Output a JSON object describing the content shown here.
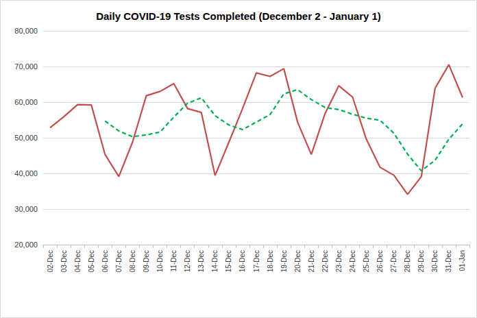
{
  "chart_data": {
    "type": "line",
    "title": "Daily COVID-19 Tests Completed (December 2 - January 1)",
    "categories": [
      "02-Dec",
      "03-Dec",
      "04-Dec",
      "05-Dec",
      "06-Dec",
      "07-Dec",
      "08-Dec",
      "09-Dec",
      "10-Dec",
      "11-Dec",
      "12-Dec",
      "13-Dec",
      "14-Dec",
      "15-Dec",
      "16-Dec",
      "17-Dec",
      "18-Dec",
      "19-Dec",
      "20-Dec",
      "21-Dec",
      "22-Dec",
      "23-Dec",
      "24-Dec",
      "25-Dec",
      "26-Dec",
      "27-Dec",
      "28-Dec",
      "29-Dec",
      "30-Dec",
      "31-Dec",
      "01-Jan"
    ],
    "series": [
      {
        "color": "#c0504d",
        "line_style": "solid",
        "values": [
          52800,
          55900,
          59300,
          59200,
          45300,
          39100,
          48800,
          61800,
          63000,
          65200,
          58200,
          57100,
          39400,
          48700,
          58200,
          68200,
          67200,
          69400,
          54400,
          45300,
          56800,
          64600,
          61400,
          49600,
          41700,
          39500,
          34100,
          39100,
          63900,
          70500,
          61300
        ]
      },
      {
        "color": "#00b050",
        "line_style": "dashed",
        "values": [
          null,
          null,
          null,
          null,
          54700,
          51900,
          50300,
          50800,
          51600,
          55800,
          59700,
          61200,
          56200,
          53600,
          52300,
          54400,
          56500,
          62300,
          63500,
          60700,
          58500,
          57900,
          56600,
          55500,
          54900,
          51300,
          45400,
          40700,
          43700,
          49600,
          53900
        ]
      }
    ],
    "ylim": [
      20000,
      80000
    ],
    "yticks": [
      {
        "value": 20000,
        "label": "20,000"
      },
      {
        "value": 30000,
        "label": "30,000"
      },
      {
        "value": 40000,
        "label": "40,000"
      },
      {
        "value": 50000,
        "label": "50,000"
      },
      {
        "value": 60000,
        "label": "60,000"
      },
      {
        "value": 70000,
        "label": "70,000"
      },
      {
        "value": 80000,
        "label": "80,000"
      }
    ],
    "grid": true
  }
}
